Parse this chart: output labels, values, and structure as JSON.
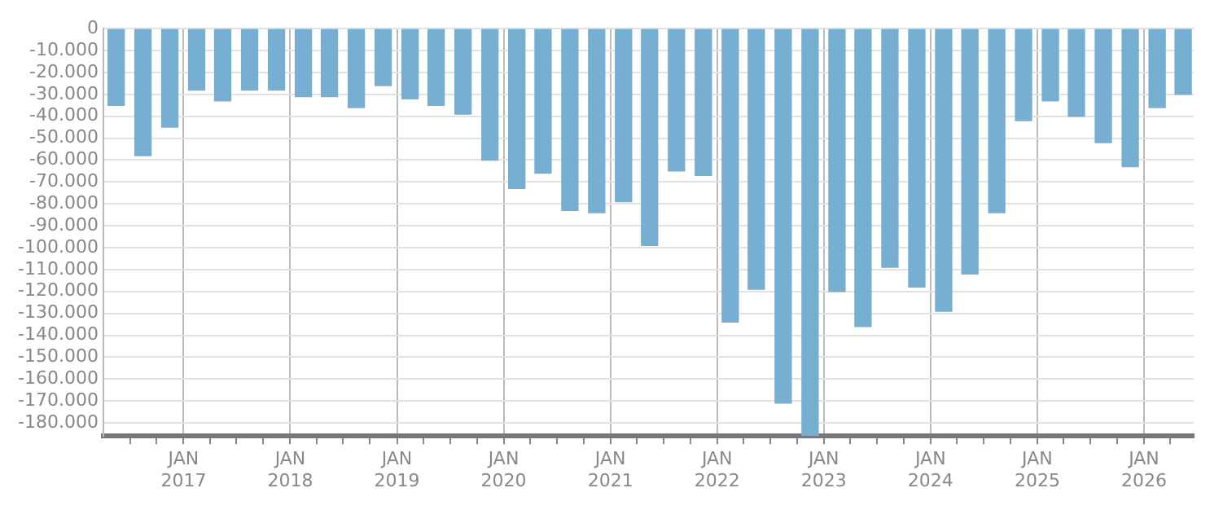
{
  "chart_data": {
    "type": "bar",
    "color": "#77afd2",
    "x": [
      "2016-05-15",
      "2016-08-15",
      "2016-11-15",
      "2017-02-15",
      "2017-05-15",
      "2017-08-15",
      "2017-11-15",
      "2018-02-15",
      "2018-05-15",
      "2018-08-15",
      "2018-11-15",
      "2019-02-15",
      "2019-05-15",
      "2019-08-15",
      "2019-11-15",
      "2020-02-15",
      "2020-05-15",
      "2020-08-15",
      "2020-11-15",
      "2021-02-15",
      "2021-05-15",
      "2021-08-15",
      "2021-11-15",
      "2022-02-15",
      "2022-05-15",
      "2022-08-15",
      "2022-11-15",
      "2023-02-15",
      "2023-05-15",
      "2023-08-15",
      "2023-11-15",
      "2024-02-15",
      "2024-05-15",
      "2024-08-15",
      "2024-11-15",
      "2025-02-15",
      "2025-05-15",
      "2025-08-15",
      "2025-11-15",
      "2026-02-15",
      "2026-05-15"
    ],
    "values": [
      -35000,
      -58000,
      -45000,
      -28000,
      -33000,
      -28000,
      -28000,
      -31000,
      -31000,
      -36000,
      -26000,
      -32000,
      -35000,
      -39000,
      -60000,
      -73000,
      -66000,
      -83000,
      -84000,
      -79000,
      -99000,
      -65000,
      -67000,
      -134000,
      -119000,
      -171000,
      -186000,
      -120000,
      -136000,
      -109000,
      -118000,
      -129000,
      -112000,
      -84000,
      -42000,
      -33000,
      -40000,
      -52000,
      -63000,
      -36000,
      -30000
    ],
    "xlim": [
      "2016-04-01",
      "2026-06-20"
    ],
    "xticks": [
      {
        "value": "2016-07-01",
        "label": null
      },
      {
        "value": "2016-10-01",
        "label": null
      },
      {
        "value": "2017-01-01",
        "label": "JAN\n2017"
      },
      {
        "value": "2017-04-01",
        "label": null
      },
      {
        "value": "2017-07-01",
        "label": null
      },
      {
        "value": "2017-10-01",
        "label": null
      },
      {
        "value": "2018-01-01",
        "label": "JAN\n2018"
      },
      {
        "value": "2018-04-01",
        "label": null
      },
      {
        "value": "2018-07-01",
        "label": null
      },
      {
        "value": "2018-10-01",
        "label": null
      },
      {
        "value": "2019-01-01",
        "label": "JAN\n2019"
      },
      {
        "value": "2019-04-01",
        "label": null
      },
      {
        "value": "2019-07-01",
        "label": null
      },
      {
        "value": "2019-10-01",
        "label": null
      },
      {
        "value": "2020-01-01",
        "label": "JAN\n2020"
      },
      {
        "value": "2020-04-01",
        "label": null
      },
      {
        "value": "2020-07-01",
        "label": null
      },
      {
        "value": "2020-10-01",
        "label": null
      },
      {
        "value": "2021-01-01",
        "label": "JAN\n2021"
      },
      {
        "value": "2021-04-01",
        "label": null
      },
      {
        "value": "2021-07-01",
        "label": null
      },
      {
        "value": "2021-10-01",
        "label": null
      },
      {
        "value": "2022-01-01",
        "label": "JAN\n2022"
      },
      {
        "value": "2022-04-01",
        "label": null
      },
      {
        "value": "2022-07-01",
        "label": null
      },
      {
        "value": "2022-10-01",
        "label": null
      },
      {
        "value": "2023-01-01",
        "label": "JAN\n2023"
      },
      {
        "value": "2023-04-01",
        "label": null
      },
      {
        "value": "2023-07-01",
        "label": null
      },
      {
        "value": "2023-10-01",
        "label": null
      },
      {
        "value": "2024-01-01",
        "label": "JAN\n2024"
      },
      {
        "value": "2024-04-01",
        "label": null
      },
      {
        "value": "2024-07-01",
        "label": null
      },
      {
        "value": "2024-10-01",
        "label": null
      },
      {
        "value": "2025-01-01",
        "label": "JAN\n2025"
      },
      {
        "value": "2025-04-01",
        "label": null
      },
      {
        "value": "2025-07-01",
        "label": null
      },
      {
        "value": "2025-10-01",
        "label": null
      },
      {
        "value": "2026-01-01",
        "label": "JAN\n2026"
      },
      {
        "value": "2026-04-01",
        "label": null
      }
    ],
    "ylim": [
      -186000,
      0
    ],
    "yticks": [
      {
        "value": 0,
        "label": "0"
      },
      {
        "value": -10000,
        "label": "-10.000"
      },
      {
        "value": -20000,
        "label": "-20.000"
      },
      {
        "value": -30000,
        "label": "-30.000"
      },
      {
        "value": -40000,
        "label": "-40.000"
      },
      {
        "value": -50000,
        "label": "-50.000"
      },
      {
        "value": -60000,
        "label": "-60.000"
      },
      {
        "value": -70000,
        "label": "-70.000"
      },
      {
        "value": -80000,
        "label": "-80.000"
      },
      {
        "value": -90000,
        "label": "-90.000"
      },
      {
        "value": -100000,
        "label": "-100.000"
      },
      {
        "value": -110000,
        "label": "-110.000"
      },
      {
        "value": -120000,
        "label": "-120.000"
      },
      {
        "value": -130000,
        "label": "-130.000"
      },
      {
        "value": -140000,
        "label": "-140.000"
      },
      {
        "value": -150000,
        "label": "-150.000"
      },
      {
        "value": -160000,
        "label": "-160.000"
      },
      {
        "value": -170000,
        "label": "-170.000"
      },
      {
        "value": -180000,
        "label": "-180.000"
      }
    ],
    "grid": true
  }
}
